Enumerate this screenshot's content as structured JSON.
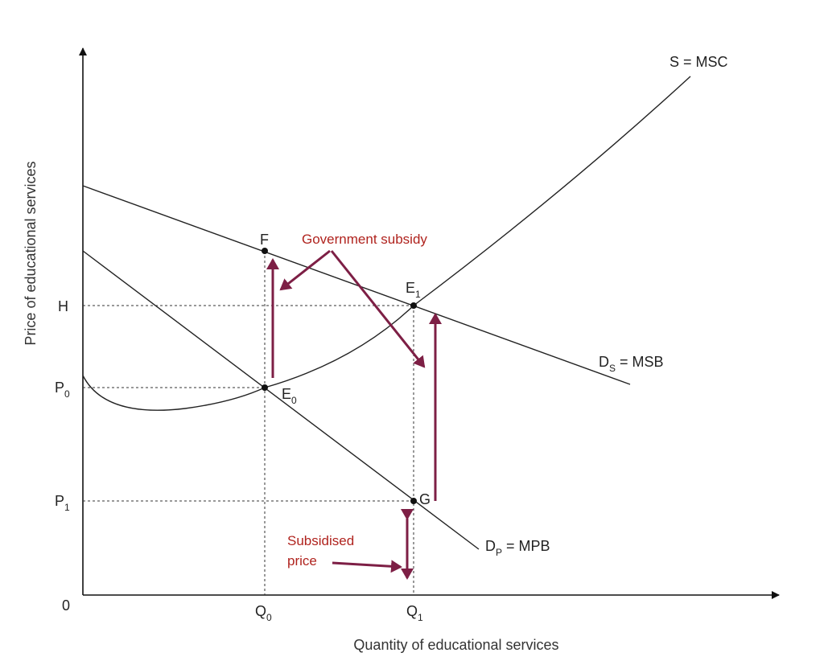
{
  "axes": {
    "x_title": "Quantity of educational services",
    "y_title": "Price of educational services",
    "origin": "0"
  },
  "price_labels": {
    "h": "H",
    "p0_main": "P",
    "p0_sub": "0",
    "p1_main": "P",
    "p1_sub": "1"
  },
  "quantity_labels": {
    "q0_main": "Q",
    "q0_sub": "0",
    "q1_main": "Q",
    "q1_sub": "1"
  },
  "curve_labels": {
    "supply": "S = MSC",
    "social_demand_main": "D",
    "social_demand_sub": "S",
    "social_demand_rest": " = MSB",
    "private_demand_main": "D",
    "private_demand_sub": "P",
    "private_demand_rest": " = MPB"
  },
  "points": {
    "f": "F",
    "e1_main": "E",
    "e1_sub": "1",
    "e0_main": "E",
    "e0_sub": "0",
    "g": "G"
  },
  "annotations": {
    "government_subsidy": "Government subsidy",
    "subsidised_price_line1": "Subsidised",
    "subsidised_price_line2": "price"
  },
  "colors": {
    "annotation_text": "#b0231e",
    "annotation_arrow": "#7d1f45",
    "lines": "#222222"
  }
}
